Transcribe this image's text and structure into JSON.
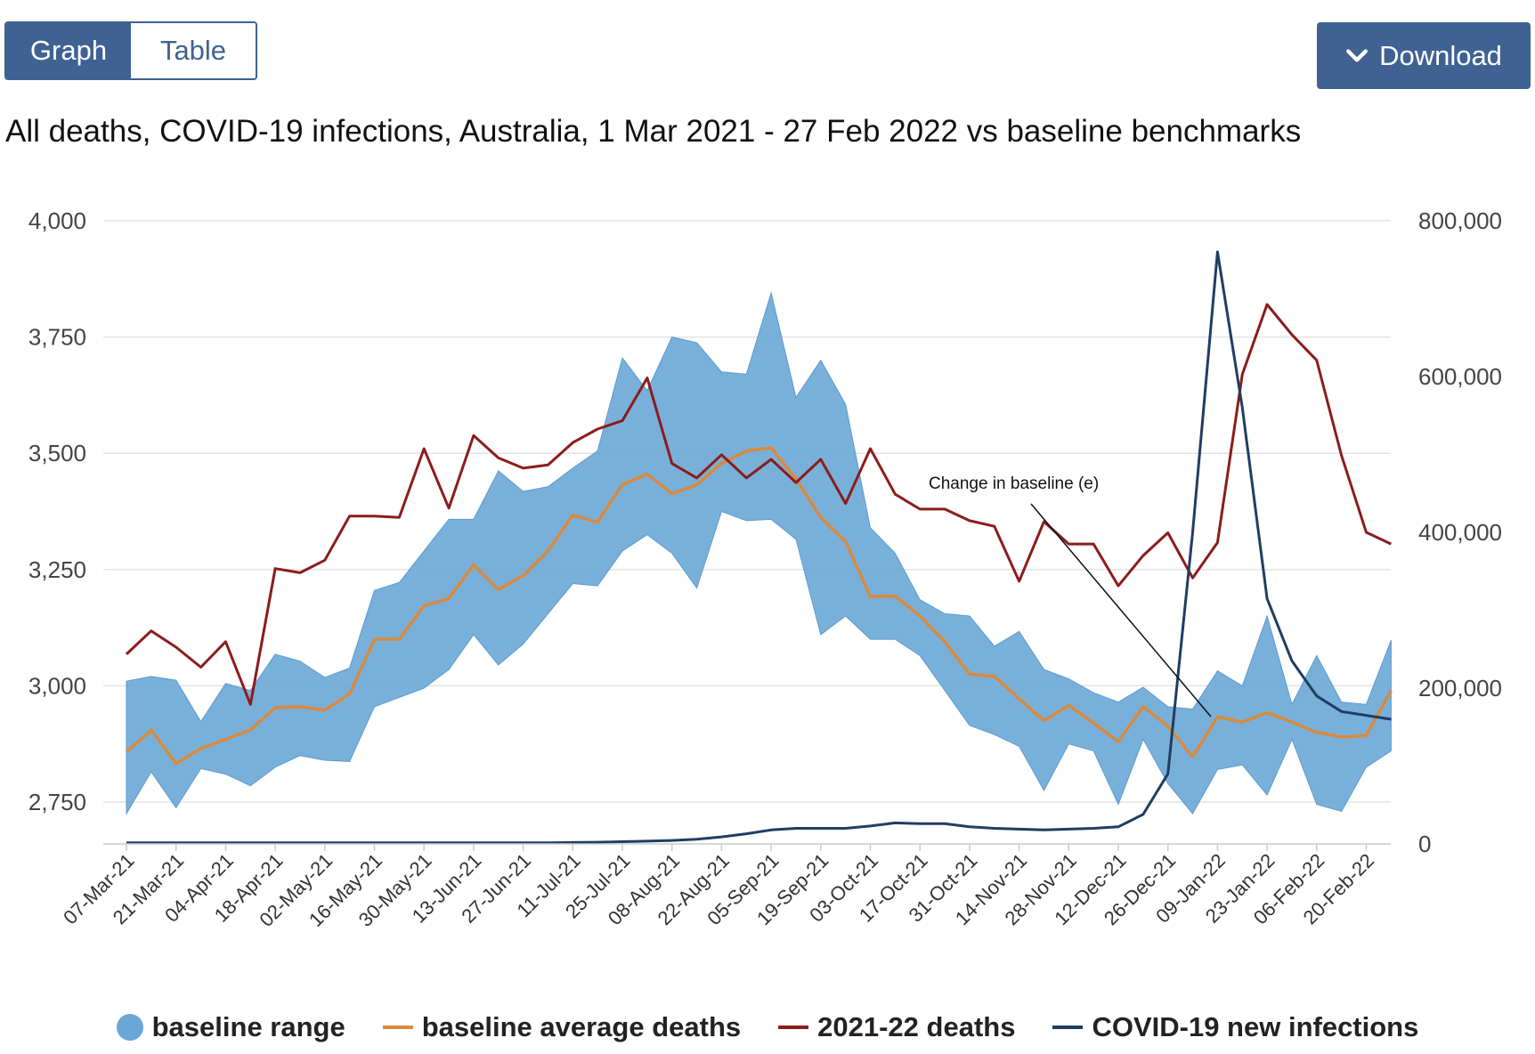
{
  "toolbar": {
    "graph_label": "Graph",
    "table_label": "Table",
    "download_label": "Download"
  },
  "chart_data": {
    "type": "line",
    "title": "All deaths, COVID-19 infections, Australia, 1 Mar 2021 - 27 Feb 2022 vs baseline benchmarks",
    "categories": [
      "07-Mar-21",
      "14-Mar-21",
      "21-Mar-21",
      "28-Mar-21",
      "04-Apr-21",
      "11-Apr-21",
      "18-Apr-21",
      "25-Apr-21",
      "02-May-21",
      "09-May-21",
      "16-May-21",
      "23-May-21",
      "30-May-21",
      "06-Jun-21",
      "13-Jun-21",
      "20-Jun-21",
      "27-Jun-21",
      "04-Jul-21",
      "11-Jul-21",
      "18-Jul-21",
      "25-Jul-21",
      "01-Aug-21",
      "08-Aug-21",
      "15-Aug-21",
      "22-Aug-21",
      "29-Aug-21",
      "05-Sep-21",
      "12-Sep-21",
      "19-Sep-21",
      "26-Sep-21",
      "03-Oct-21",
      "10-Oct-21",
      "17-Oct-21",
      "24-Oct-21",
      "31-Oct-21",
      "07-Nov-21",
      "14-Nov-21",
      "21-Nov-21",
      "28-Nov-21",
      "05-Dec-21",
      "12-Dec-21",
      "19-Dec-21",
      "26-Dec-21",
      "02-Jan-22",
      "09-Jan-22",
      "16-Jan-22",
      "23-Jan-22",
      "30-Jan-22",
      "06-Feb-22",
      "13-Feb-22",
      "20-Feb-22",
      "27-Feb-22"
    ],
    "x_tick_labels": [
      "07-Mar-21",
      "21-Mar-21",
      "04-Apr-21",
      "18-Apr-21",
      "02-May-21",
      "16-May-21",
      "30-May-21",
      "13-Jun-21",
      "27-Jun-21",
      "11-Jul-21",
      "25-Jul-21",
      "08-Aug-21",
      "22-Aug-21",
      "05-Sep-21",
      "19-Sep-21",
      "03-Oct-21",
      "17-Oct-21",
      "31-Oct-21",
      "14-Nov-21",
      "28-Nov-21",
      "12-Dec-21",
      "26-Dec-21",
      "09-Jan-22",
      "23-Jan-22",
      "06-Feb-22",
      "20-Feb-22"
    ],
    "y_left": {
      "lim": [
        2660,
        4000
      ],
      "ticks": [
        2750,
        3000,
        3250,
        3500,
        3750,
        4000
      ],
      "tick_labels": [
        "2,750",
        "3,000",
        "3,250",
        "3,500",
        "3,750",
        "4,000"
      ]
    },
    "y_right": {
      "lim": [
        0,
        800000
      ],
      "ticks": [
        0,
        200000,
        400000,
        600000,
        800000
      ],
      "tick_labels": [
        "0",
        "200,000",
        "400,000",
        "600,000",
        "800,000"
      ]
    },
    "grid": true,
    "legend_position": "bottom",
    "series": [
      {
        "name": "baseline range",
        "type": "range",
        "axis": "left",
        "color": "#6aa7d6",
        "low": [
          2725,
          2815,
          2738,
          2822,
          2810,
          2785,
          2825,
          2850,
          2840,
          2837,
          2955,
          2975,
          2995,
          3035,
          3110,
          3045,
          3090,
          3155,
          3220,
          3215,
          3290,
          3325,
          3285,
          3210,
          3375,
          3355,
          3358,
          3315,
          3110,
          3150,
          3100,
          3100,
          3065,
          2990,
          2915,
          2895,
          2870,
          2775,
          2875,
          2860,
          2745,
          2885,
          2790,
          2725,
          2820,
          2830,
          2765,
          2885,
          2745,
          2730,
          2825,
          2860
        ],
        "high": [
          3010,
          3020,
          3012,
          2923,
          3005,
          2990,
          3068,
          3053,
          3018,
          3038,
          3205,
          3222,
          3290,
          3358,
          3358,
          3462,
          3418,
          3428,
          3468,
          3505,
          3705,
          3635,
          3750,
          3738,
          3675,
          3670,
          3845,
          3620,
          3700,
          3605,
          3340,
          3285,
          3185,
          3155,
          3150,
          3085,
          3117,
          3035,
          3015,
          2985,
          2965,
          2997,
          2955,
          2950,
          3032,
          3000,
          3150,
          2960,
          3065,
          2965,
          2960,
          3098
        ]
      },
      {
        "name": "baseline average deaths",
        "type": "line",
        "axis": "left",
        "color": "#d98a3d",
        "values": [
          2857,
          2905,
          2833,
          2865,
          2885,
          2905,
          2953,
          2955,
          2948,
          2982,
          3100,
          3100,
          3172,
          3188,
          3260,
          3207,
          3237,
          3290,
          3367,
          3352,
          3433,
          3455,
          3413,
          3432,
          3478,
          3505,
          3512,
          3445,
          3362,
          3310,
          3192,
          3193,
          3150,
          3095,
          3025,
          3020,
          2972,
          2925,
          2958,
          2920,
          2880,
          2955,
          2913,
          2847,
          2933,
          2922,
          2942,
          2922,
          2900,
          2890,
          2893,
          2990
        ]
      },
      {
        "name": "2021-22 deaths",
        "type": "line",
        "axis": "left",
        "color": "#8b1c1c",
        "values": [
          3068,
          3118,
          3083,
          3040,
          3095,
          2960,
          3252,
          3243,
          3270,
          3365,
          3365,
          3362,
          3510,
          3382,
          3538,
          3490,
          3468,
          3475,
          3523,
          3552,
          3570,
          3662,
          3478,
          3447,
          3497,
          3447,
          3487,
          3437,
          3487,
          3392,
          3510,
          3412,
          3380,
          3380,
          3355,
          3343,
          3225,
          3353,
          3305,
          3305,
          3215,
          3280,
          3329,
          3232,
          3308,
          3670,
          3820,
          3755,
          3700,
          3495,
          3330,
          3305
        ]
      },
      {
        "name": "COVID-19 new infections",
        "type": "line",
        "axis": "right",
        "color": "#203d63",
        "values": [
          1500,
          1500,
          1500,
          1500,
          1500,
          1500,
          1500,
          1500,
          1500,
          1500,
          1500,
          1500,
          1500,
          1500,
          1500,
          1500,
          1500,
          1500,
          1800,
          2200,
          2800,
          3500,
          4500,
          6000,
          9000,
          13000,
          18000,
          20000,
          20000,
          20000,
          23000,
          27000,
          26000,
          26000,
          22000,
          20000,
          19000,
          18000,
          19000,
          20000,
          22000,
          38000,
          90000,
          400000,
          760000,
          560000,
          315000,
          235000,
          190000,
          170000,
          165000,
          160000
        ]
      }
    ],
    "annotations": [
      {
        "text": "Change in baseline (e)"
      }
    ]
  }
}
